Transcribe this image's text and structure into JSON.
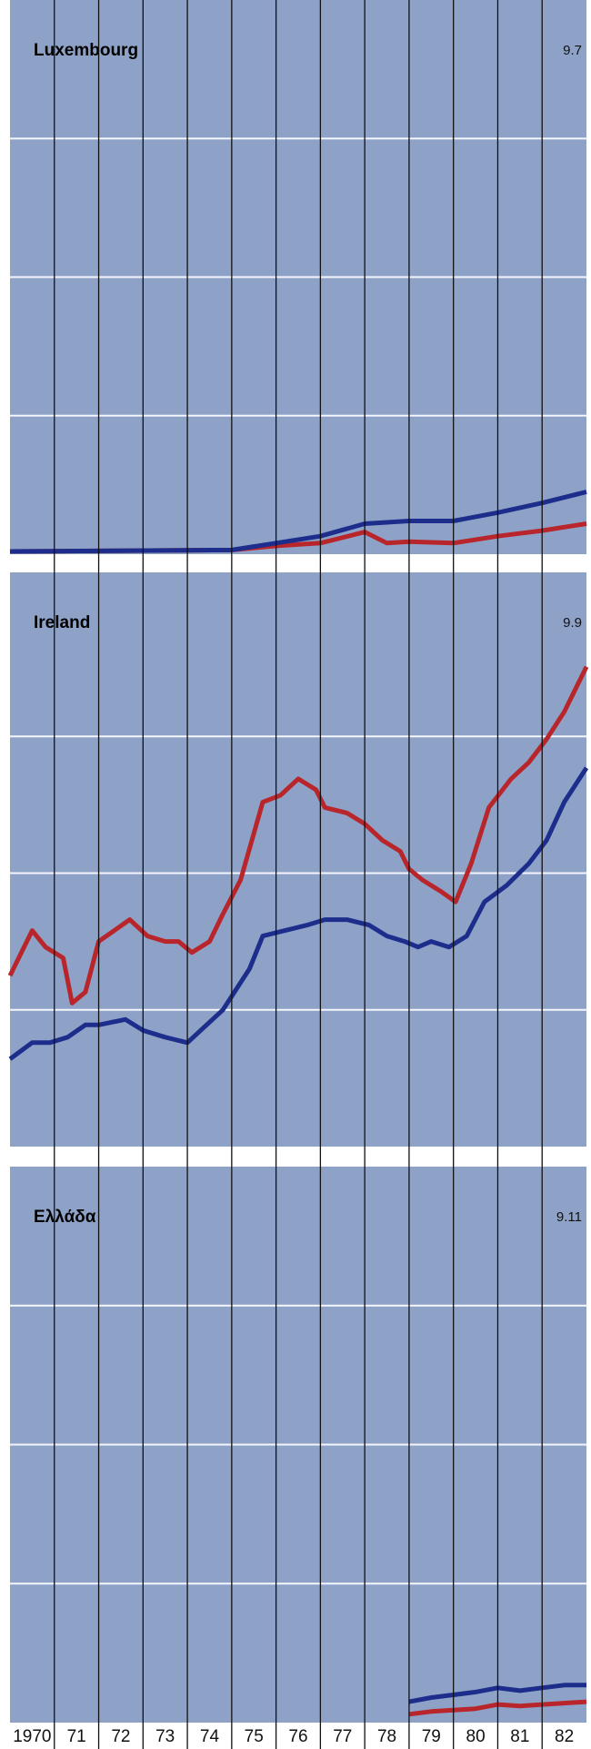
{
  "chart_data": [
    {
      "type": "line",
      "title": "Luxembourg",
      "code": "9.7",
      "xlim": [
        1970,
        1983
      ],
      "ylim": [
        0,
        4
      ],
      "yticks": [
        1,
        2,
        3
      ],
      "grid": true,
      "series": [
        {
          "color": "#b8262b",
          "x": [
            1970,
            1975,
            1976,
            1977,
            1978,
            1978.5,
            1979,
            1980,
            1981,
            1982,
            1983
          ],
          "values": [
            0.02,
            0.03,
            0.06,
            0.08,
            0.16,
            0.08,
            0.09,
            0.08,
            0.13,
            0.17,
            0.22
          ]
        },
        {
          "color": "#1c2d8c",
          "x": [
            1970,
            1975,
            1976,
            1977,
            1978,
            1979,
            1980,
            1981,
            1982,
            1983
          ],
          "values": [
            0.02,
            0.03,
            0.08,
            0.13,
            0.22,
            0.24,
            0.24,
            0.3,
            0.37,
            0.45
          ]
        }
      ]
    },
    {
      "type": "line",
      "title": "Ireland",
      "code": "9.9",
      "xlim": [
        1970,
        1983
      ],
      "ylim": [
        0,
        4.2
      ],
      "yticks": [
        1,
        2,
        3
      ],
      "grid": true,
      "series": [
        {
          "color": "#b8262b",
          "x": [
            1970,
            1970.5,
            1970.8,
            1971.2,
            1971.4,
            1971.7,
            1972,
            1972.7,
            1973.1,
            1973.5,
            1973.8,
            1974.1,
            1974.5,
            1974.8,
            1975.2,
            1975.7,
            1976.1,
            1976.5,
            1976.9,
            1977.1,
            1977.6,
            1978,
            1978.4,
            1978.8,
            1979,
            1979.3,
            1979.7,
            1980.05,
            1980.4,
            1980.8,
            1981.3,
            1981.7,
            1982.1,
            1982.5,
            1983
          ],
          "values": [
            1.25,
            1.58,
            1.46,
            1.38,
            1.05,
            1.13,
            1.5,
            1.66,
            1.54,
            1.5,
            1.5,
            1.42,
            1.5,
            1.7,
            1.95,
            2.52,
            2.57,
            2.69,
            2.61,
            2.48,
            2.44,
            2.36,
            2.24,
            2.16,
            2.03,
            1.95,
            1.87,
            1.79,
            2.07,
            2.48,
            2.69,
            2.81,
            2.98,
            3.18,
            3.51
          ]
        },
        {
          "color": "#1c2d8c",
          "x": [
            1970,
            1970.5,
            1970.9,
            1971.3,
            1971.7,
            1972,
            1972.6,
            1973,
            1973.5,
            1974,
            1974.3,
            1974.8,
            1975.4,
            1975.7,
            1976.2,
            1976.7,
            1977.1,
            1977.6,
            1978.1,
            1978.5,
            1978.9,
            1979.2,
            1979.5,
            1979.9,
            1980.3,
            1980.7,
            1981.2,
            1981.7,
            1982.1,
            1982.5,
            1983
          ],
          "values": [
            0.64,
            0.76,
            0.76,
            0.8,
            0.89,
            0.89,
            0.93,
            0.85,
            0.8,
            0.76,
            0.85,
            1.0,
            1.3,
            1.54,
            1.58,
            1.62,
            1.66,
            1.66,
            1.62,
            1.54,
            1.5,
            1.46,
            1.5,
            1.46,
            1.54,
            1.79,
            1.91,
            2.07,
            2.24,
            2.52,
            2.77
          ]
        }
      ]
    },
    {
      "type": "line",
      "title": "Ελλάδα",
      "code": "9.11",
      "xlim": [
        1970,
        1983
      ],
      "ylim": [
        0,
        4
      ],
      "yticks": [
        1,
        2,
        3
      ],
      "grid": true,
      "series": [
        {
          "color": "#b8262b",
          "x": [
            1979,
            1979.5,
            1980,
            1980.5,
            1981,
            1981.5,
            1982,
            1982.5,
            1983
          ],
          "values": [
            0.06,
            0.08,
            0.09,
            0.1,
            0.13,
            0.12,
            0.13,
            0.14,
            0.15
          ]
        },
        {
          "color": "#1c2d8c",
          "x": [
            1979,
            1979.5,
            1980,
            1980.5,
            1981,
            1981.5,
            1982,
            1982.5,
            1983
          ],
          "values": [
            0.15,
            0.18,
            0.2,
            0.22,
            0.25,
            0.23,
            0.25,
            0.27,
            0.27
          ]
        }
      ],
      "xticks": [
        {
          "value": 1970,
          "label": "1970"
        },
        {
          "value": 1971,
          "label": "71"
        },
        {
          "value": 1972,
          "label": "72"
        },
        {
          "value": 1973,
          "label": "73"
        },
        {
          "value": 1974,
          "label": "74"
        },
        {
          "value": 1975,
          "label": "75"
        },
        {
          "value": 1976,
          "label": "76"
        },
        {
          "value": 1977,
          "label": "77"
        },
        {
          "value": 1978,
          "label": "78"
        },
        {
          "value": 1979,
          "label": "79"
        },
        {
          "value": 1980,
          "label": "80"
        },
        {
          "value": 1981,
          "label": "81"
        },
        {
          "value": 1982,
          "label": "82"
        }
      ]
    }
  ]
}
